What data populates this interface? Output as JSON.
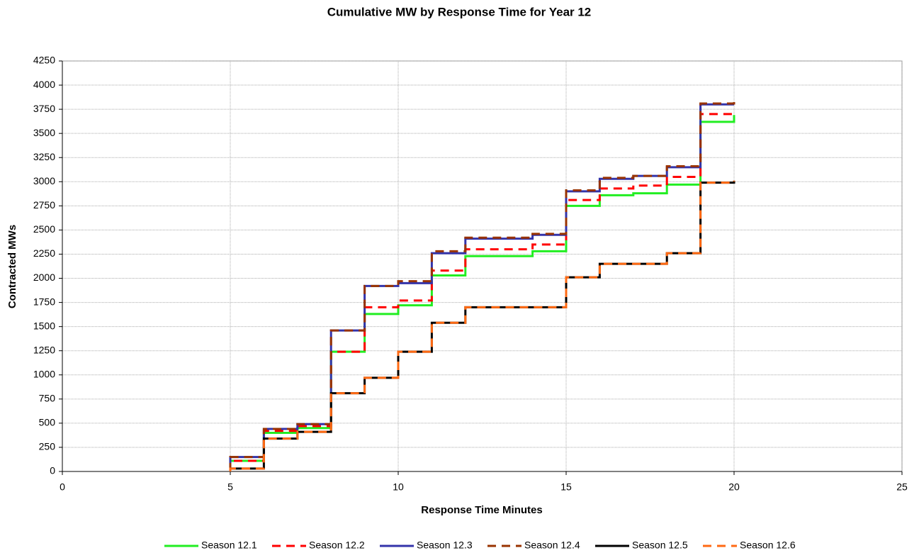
{
  "chart_data": {
    "type": "step",
    "title": "Cumulative MW by Response Time for Year 12",
    "x_label": "Response Time Minutes",
    "y_label": "Contracted MWs",
    "x": [
      5,
      6,
      7,
      8,
      9,
      10,
      11,
      12,
      13,
      14,
      15,
      16,
      17,
      18,
      19,
      20
    ],
    "series": [
      {
        "name": "Season 12.1",
        "color": "#22ee22",
        "dashed": false,
        "values": [
          110,
          400,
          450,
          1240,
          1630,
          1720,
          2030,
          2230,
          2230,
          2280,
          2750,
          2860,
          2880,
          2970,
          3620,
          3690
        ]
      },
      {
        "name": "Season 12.2",
        "color": "#ff0000",
        "dashed": true,
        "values": [
          110,
          420,
          470,
          1240,
          1700,
          1770,
          2080,
          2300,
          2300,
          2350,
          2810,
          2930,
          2960,
          3050,
          3700,
          3700
        ]
      },
      {
        "name": "Season 12.3",
        "color": "#3333aa",
        "dashed": false,
        "values": [
          150,
          440,
          490,
          1460,
          1920,
          1950,
          2260,
          2410,
          2410,
          2450,
          2900,
          3030,
          3060,
          3150,
          3800,
          3800
        ]
      },
      {
        "name": "Season 12.4",
        "color": "#993300",
        "dashed": true,
        "values": [
          150,
          440,
          490,
          1460,
          1920,
          1970,
          2280,
          2420,
          2420,
          2460,
          2910,
          3040,
          3060,
          3160,
          3810,
          3860
        ]
      },
      {
        "name": "Season 12.5",
        "color": "#000000",
        "dashed": false,
        "values": [
          30,
          340,
          410,
          810,
          970,
          1240,
          1540,
          1700,
          1700,
          1700,
          2010,
          2150,
          2150,
          2260,
          2990,
          3010
        ]
      },
      {
        "name": "Season 12.6",
        "color": "#ff6a13",
        "dashed": true,
        "values": [
          30,
          340,
          410,
          810,
          970,
          1240,
          1540,
          1700,
          1700,
          1700,
          2010,
          2150,
          2150,
          2260,
          2990,
          3010
        ]
      }
    ],
    "xlim": [
      0,
      25
    ],
    "xticks": [
      0,
      5,
      10,
      15,
      20,
      25
    ],
    "ylim": [
      0,
      4250
    ],
    "yticks": [
      0,
      250,
      500,
      750,
      1000,
      1250,
      1500,
      1750,
      2000,
      2250,
      2500,
      2750,
      3000,
      3250,
      3500,
      3750,
      4000,
      4250
    ],
    "grid": true,
    "legend": "bottom"
  }
}
